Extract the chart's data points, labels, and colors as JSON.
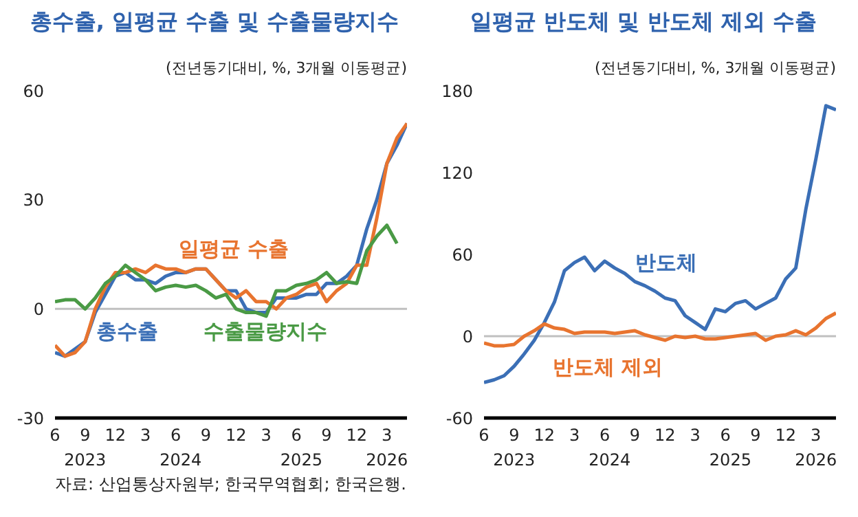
{
  "chart_data": [
    {
      "type": "line",
      "title": "총수출, 일평균 수출 및 수출물량지수",
      "subtitle": "(전년동기대비,  %, 3개월 이동평균)",
      "x": [
        "2023-06",
        "2023-07",
        "2023-08",
        "2023-09",
        "2023-10",
        "2023-11",
        "2023-12",
        "2024-01",
        "2024-02",
        "2024-03",
        "2024-04",
        "2024-05",
        "2024-06",
        "2024-07",
        "2024-08",
        "2024-09",
        "2024-10",
        "2024-11",
        "2024-12",
        "2025-01",
        "2025-02",
        "2025-03",
        "2025-04",
        "2025-05",
        "2025-06",
        "2025-07",
        "2025-08",
        "2025-09",
        "2025-10",
        "2025-11",
        "2025-12",
        "2026-01",
        "2026-02",
        "2026-03",
        "2026-04",
        "2026-05"
      ],
      "series": [
        {
          "name": "총수출",
          "color": "#3b6fb6",
          "values": [
            -12,
            -13,
            -11,
            -9,
            -1,
            4,
            9,
            10,
            8,
            8,
            7,
            9,
            10,
            10,
            11,
            11,
            8,
            5,
            5,
            0,
            -1,
            -1,
            3,
            3,
            3,
            4,
            4,
            7,
            7,
            9,
            12,
            22,
            30,
            40,
            45,
            51
          ]
        },
        {
          "name": "일평균 수출",
          "color": "#e8742f",
          "values": [
            -10,
            -13,
            -12,
            -9,
            0,
            6,
            10,
            10,
            11,
            10,
            12,
            11,
            11,
            10,
            11,
            11,
            8,
            5,
            3,
            5,
            2,
            2,
            0,
            3,
            4,
            6,
            7,
            2,
            5,
            7,
            12,
            12,
            25,
            40,
            47,
            51
          ]
        },
        {
          "name": "수출물량지수",
          "color": "#4a9a45",
          "values": [
            2,
            2.5,
            2.5,
            0,
            3,
            7,
            9,
            12,
            10,
            8,
            5,
            6,
            6.5,
            6,
            6.5,
            5,
            3,
            4,
            0,
            -1,
            -1,
            -2,
            5,
            5,
            6.5,
            7,
            8,
            10,
            7,
            7.5,
            7,
            16,
            20,
            23,
            18,
            null
          ]
        }
      ],
      "xlim": [
        "2023-06",
        "2026-05"
      ],
      "xticks": [
        {
          "value": "2023-06",
          "label": "6"
        },
        {
          "value": "2023-09",
          "label": "9"
        },
        {
          "value": "2023-12",
          "label": "12"
        },
        {
          "value": "2024-03",
          "label": "3"
        },
        {
          "value": "2024-06",
          "label": "6"
        },
        {
          "value": "2024-09",
          "label": "9"
        },
        {
          "value": "2024-12",
          "label": "12"
        },
        {
          "value": "2025-03",
          "label": "3"
        },
        {
          "value": "2025-06",
          "label": "6"
        },
        {
          "value": "2025-09",
          "label": "9"
        },
        {
          "value": "2025-12",
          "label": "12"
        },
        {
          "value": "2026-03",
          "label": "3"
        }
      ],
      "ylim": [
        -30,
        60
      ],
      "yticks": [
        -30,
        0,
        30,
        60
      ],
      "ref_lines": [
        {
          "axis": "y",
          "value": 0,
          "color": "#c0c0c0"
        }
      ],
      "annotations": [
        "2023",
        "2024",
        "2025",
        "2026",
        "자료: 산업통상자원부; 한국무역협회; 한국은행."
      ]
    },
    {
      "type": "line",
      "title": "일평균 반도체 및 반도체 제외 수출",
      "subtitle": "(전년동기대비,  %, 3개월 이동평균)",
      "x": [
        "2023-06",
        "2023-07",
        "2023-08",
        "2023-09",
        "2023-10",
        "2023-11",
        "2023-12",
        "2024-01",
        "2024-02",
        "2024-03",
        "2024-04",
        "2024-05",
        "2024-06",
        "2024-07",
        "2024-08",
        "2024-09",
        "2024-10",
        "2024-11",
        "2024-12",
        "2025-01",
        "2025-02",
        "2025-03",
        "2025-04",
        "2025-05",
        "2025-06",
        "2025-07",
        "2025-08",
        "2025-09",
        "2025-10",
        "2025-11",
        "2025-12",
        "2026-01",
        "2026-02",
        "2026-03",
        "2026-04",
        "2026-05"
      ],
      "series": [
        {
          "name": "반도체",
          "color": "#3b6fb6",
          "values": [
            -34,
            -32,
            -29,
            -22,
            -13,
            -3,
            10,
            25,
            48,
            54,
            58,
            48,
            55,
            50,
            46,
            40,
            37,
            33,
            28,
            26,
            15,
            10,
            5,
            20,
            18,
            24,
            26,
            20,
            24,
            28,
            42,
            50,
            93,
            130,
            169,
            166
          ]
        },
        {
          "name": "반도체 제외",
          "color": "#e8742f",
          "values": [
            -5,
            -7,
            -7,
            -6,
            0,
            4,
            9,
            6,
            5,
            2,
            3,
            3,
            3,
            2,
            3,
            4,
            1,
            -1,
            -3,
            0,
            -1,
            0,
            -2,
            -2,
            -1,
            0,
            1,
            2,
            -3,
            0,
            1,
            4,
            1,
            6,
            13,
            17
          ]
        }
      ],
      "xlim": [
        "2023-06",
        "2026-05"
      ],
      "xticks": [
        {
          "value": "2023-06",
          "label": "6"
        },
        {
          "value": "2023-09",
          "label": "9"
        },
        {
          "value": "2023-12",
          "label": "12"
        },
        {
          "value": "2024-03",
          "label": "3"
        },
        {
          "value": "2024-06",
          "label": "6"
        },
        {
          "value": "2024-09",
          "label": "9"
        },
        {
          "value": "2024-12",
          "label": "12"
        },
        {
          "value": "2025-03",
          "label": "3"
        },
        {
          "value": "2025-06",
          "label": "6"
        },
        {
          "value": "2025-09",
          "label": "9"
        },
        {
          "value": "2025-12",
          "label": "12"
        },
        {
          "value": "2026-03",
          "label": "3"
        }
      ],
      "ylim": [
        -60,
        180
      ],
      "yticks": [
        -60,
        0,
        60,
        120,
        180
      ],
      "ref_lines": [
        {
          "axis": "y",
          "value": 0,
          "color": "#c0c0c0"
        }
      ],
      "annotations": [
        "2023",
        "2024",
        "2025",
        "2026"
      ]
    }
  ]
}
